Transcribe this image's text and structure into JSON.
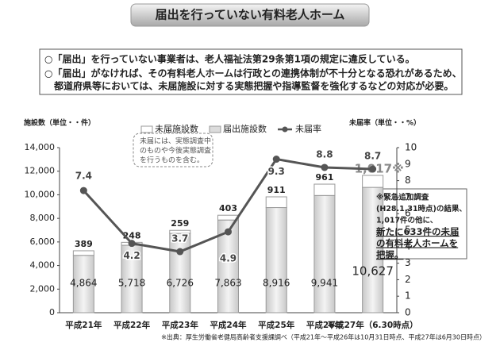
{
  "header": {
    "title": "届出を行っていない有料老人ホーム",
    "bullets": [
      "○「届出」を行っていない事業者は、老人福祉法第29条第1項の規定に違反している。",
      "○「届出」がなければ、その有料老人ホームは行政との連携体制が不十分となる恐れがあるため、",
      "都道府県等においては、未届施設に対する実態把握や指導監督を強化するなどの対応が必要。"
    ]
  },
  "chart_data": {
    "type": "bar",
    "y_label": "施設数（単位・・件）",
    "y2_label": "未届率（単位・・%）",
    "categories": [
      "平成21年",
      "平成22年",
      "平成23年",
      "平成24年",
      "平成25年",
      "平成26年",
      "平成27年（6.30時点）"
    ],
    "series": [
      {
        "name": "未届施設数",
        "color": "#ffffff",
        "values": [
          389,
          248,
          259,
          403,
          911,
          961,
          1017
        ],
        "value_labels": [
          "389",
          "248",
          "259",
          "403",
          "911",
          "961",
          "1,017※"
        ]
      },
      {
        "name": "届出施設数",
        "color": "#dcdcdc",
        "values": [
          4864,
          5718,
          6726,
          7863,
          8916,
          9941,
          10627
        ],
        "value_labels": [
          "4,864",
          "5,718",
          "6,726",
          "7,863",
          "8,916",
          "9,941",
          "10,627"
        ]
      },
      {
        "name": "未届率",
        "color": "#555555",
        "axis": "y2",
        "values": [
          7.4,
          4.2,
          3.7,
          4.9,
          9.3,
          8.8,
          8.7
        ]
      }
    ],
    "ylim": [
      0,
      14000
    ],
    "yticks": [
      0,
      {
        "value": 2000,
        "label": "2,000"
      },
      {
        "value": 4000,
        "label": "4,000"
      },
      {
        "value": 6000,
        "label": "6,000"
      },
      {
        "value": 8000,
        "label": "8,000"
      },
      {
        "value": 10000,
        "label": "10,000"
      },
      {
        "value": 12000,
        "label": "12,000"
      },
      {
        "value": 14000,
        "label": "14,000"
      }
    ],
    "y2lim": [
      0,
      10
    ],
    "y2ticks": [
      0,
      1,
      2,
      3,
      4,
      5,
      6,
      7,
      8,
      9,
      10
    ],
    "note": [
      "未届には、実態調査中",
      "のものや今後実態調査",
      "を行うものを含む。"
    ],
    "callout": [
      "※緊急追加調査",
      "(H28.1.31時点)の結果、",
      "1,017件の他に、",
      "新たに633件の未届",
      "の有料老人ホームを",
      "把握。"
    ],
    "source": "※出典：厚生労働省老健局高齢者支援課調べ（平成21年～平成26年は10月31日時点、平成27年は6月30日時点）"
  }
}
